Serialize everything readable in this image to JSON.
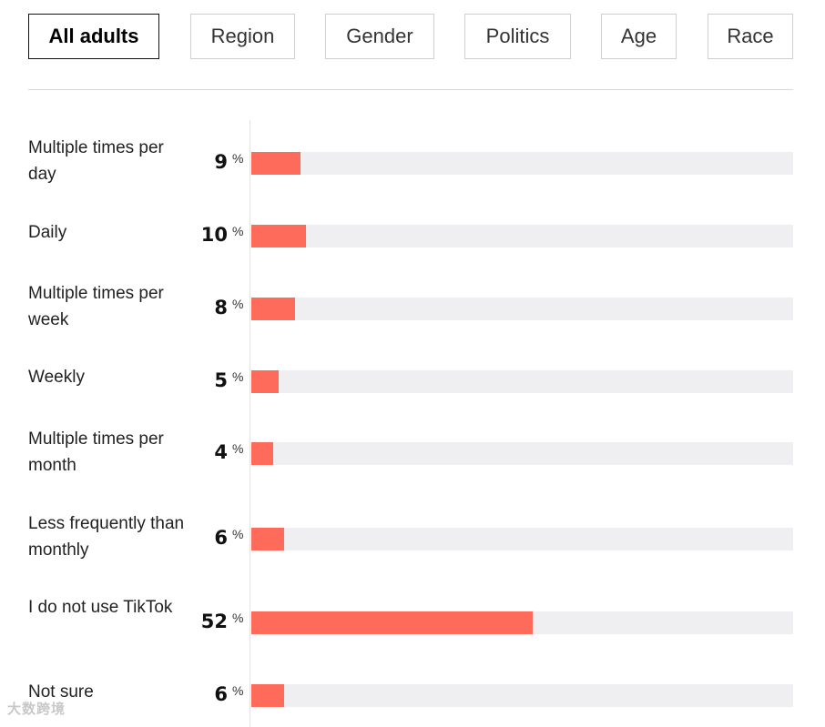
{
  "tabs": [
    {
      "label": "All adults",
      "active": true
    },
    {
      "label": "Region",
      "active": false
    },
    {
      "label": "Gender",
      "active": false
    },
    {
      "label": "Politics",
      "active": false
    },
    {
      "label": "Age",
      "active": false
    },
    {
      "label": "Race",
      "active": false
    }
  ],
  "colors": {
    "bar": "#ff6b5b",
    "track": "#efeff2"
  },
  "percent_sign": "%",
  "watermark": "大数跨境",
  "chart_data": {
    "type": "bar",
    "orientation": "horizontal",
    "categories": [
      "Multiple times per day",
      "Daily",
      "Multiple times per week",
      "Weekly",
      "Multiple times per month",
      "Less frequently than monthly",
      "I do not use TikTok",
      "Not sure"
    ],
    "values": [
      9,
      10,
      8,
      5,
      4,
      6,
      52,
      6
    ],
    "unit": "%",
    "xlim": [
      0,
      100
    ],
    "grid": false
  }
}
